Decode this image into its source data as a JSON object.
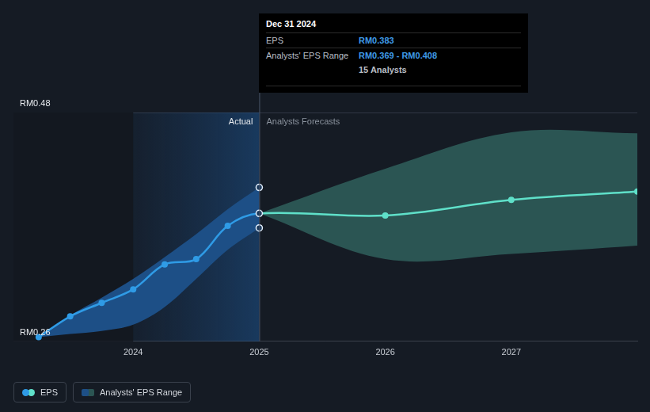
{
  "chart_data": {
    "type": "line",
    "xlim": [
      2023.05,
      2028
    ],
    "xticks": [
      2024,
      2025,
      2026,
      2027
    ],
    "ylim": [
      0.26,
      0.48
    ],
    "yticks": [
      {
        "value": 0.26,
        "label": "RM0.26"
      },
      {
        "value": 0.48,
        "label": "RM0.48"
      }
    ],
    "grid": true,
    "series": [
      {
        "name": "EPS",
        "type": "line",
        "marker": "circle",
        "x": [
          2023.25,
          2023.5,
          2023.75,
          2024,
          2024.25,
          2024.5,
          2024.75,
          2025,
          2026,
          2027,
          2028
        ],
        "values": [
          0.264,
          0.284,
          0.297,
          0.31,
          0.334,
          0.339,
          0.371,
          0.383,
          0.381,
          0.396,
          0.404
        ],
        "colors": [
          "#2f9be6",
          "#2f9be6",
          "#2f9be6",
          "#2f9be6",
          "#2f9be6",
          "#2f9be6",
          "#2f9be6",
          "#2f9be6",
          "#5fe0c9",
          "#5fe0c9",
          "#5fe0c9"
        ]
      },
      {
        "name": "Analysts' EPS Range",
        "type": "area",
        "x": [
          2023.25,
          2023.5,
          2023.75,
          2024,
          2024.25,
          2024.5,
          2024.75,
          2025,
          2025,
          2026,
          2027,
          2028
        ],
        "low": [
          0.264,
          0.267,
          0.27,
          0.276,
          0.293,
          0.32,
          0.348,
          0.369,
          0.383,
          0.339,
          0.344,
          0.352
        ],
        "high": [
          0.264,
          0.285,
          0.302,
          0.32,
          0.341,
          0.363,
          0.387,
          0.408,
          0.383,
          0.426,
          0.461,
          0.46
        ],
        "colors": [
          "#1d4f86",
          "#1d4f86",
          "#1d4f86",
          "#1d4f86",
          "#1d4f86",
          "#1d4f86",
          "#1d4f86",
          "#1d4f86",
          "#2b5553",
          "#2b5553",
          "#2b5553",
          "#2b5553"
        ]
      }
    ],
    "annotations": [
      "Actual",
      "Analysts Forecasts"
    ],
    "tooltip": {
      "title": "Dec 31 2024",
      "rows": [
        {
          "label": "EPS",
          "value": "RM0.383"
        },
        {
          "label": "Analysts' EPS Range",
          "value": "RM0.369 - RM0.408"
        },
        {
          "value": "15 Analysts"
        }
      ]
    }
  }
}
